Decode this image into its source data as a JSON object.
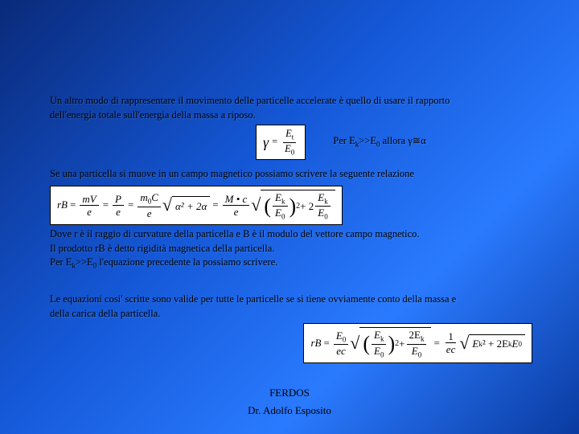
{
  "slide": {
    "para1a": "Un altro modo di rappresentare il movimento delle particelle accelerate è quello di usare il rapporto",
    "para1b": "dell'energia totale sull'energia della massa a riposo.",
    "aside1": "Per E",
    "aside1_sub1": "k",
    "aside1_mid": ">>E",
    "aside1_sub2": "0",
    "aside1_end": " allora γ≅α",
    "para2": "Se una particella si muove in un campo magnetico possiamo scrivere la seguente relazione",
    "para3a": "Dove r è il raggio di curvature della particella e B è il modulo del vettore campo magnetico.",
    "para3b": "Il prodotto rB è detto rigidità magnetica della particella.",
    "para3c_a": "Per E",
    "para3c_sub1": "k",
    "para3c_mid": ">>E",
    "para3c_sub2": "0",
    "para3c_end": " l'equazione precedente la possiamo scrivere.",
    "para4a": "Le equazioni cosi' scritte sono valide per tutte le particelle se si tiene ovviamente conto della massa e",
    "para4b": "della carica della particella."
  },
  "formulas": {
    "f1": {
      "lhs": "γ",
      "num": "E",
      "num_sub": "t",
      "den": "E",
      "den_sub": "0"
    },
    "f2": {
      "lhs": "rB",
      "t1_num": "mV",
      "t1_den": "e",
      "t2_num": "P",
      "t2_den": "e",
      "t3_num_a": "m",
      "t3_num_sub": "0",
      "t3_num_b": "C",
      "t3_den": "e",
      "sqrt1": "α² + 2α",
      "t4_num": "M • c",
      "t4_den": "e",
      "inner_num": "E",
      "inner_num_sub": "k",
      "inner_den": "E",
      "inner_den_sub": "0",
      "tail_a": " + 2",
      "tail_num": "E",
      "tail_sub1": "k",
      "tail_den": "E",
      "tail_sub2": "0"
    },
    "f3": {
      "lhs": "rB",
      "coef_num": "E",
      "coef_sub": "0",
      "coef_den": "ec",
      "inner_num": "E",
      "inner_sub1": "k",
      "inner_den": "E",
      "inner_sub2": "0",
      "mid": " + ",
      "t2_num_a": "2E",
      "t2_sub1": "k",
      "t2_den": "E",
      "t2_sub2": "0",
      "rhs_coef_num": "1",
      "rhs_coef_den": "ec",
      "rhs_rad_a": "E",
      "rhs_sub_k": "k",
      "rhs_rad_b": "² + 2E",
      "rhs_sub_k2": "k",
      "rhs_rad_c": "E",
      "rhs_sub_0": "0"
    }
  },
  "footer": {
    "title": "FERDOS",
    "author": "Dr. Adolfo Esposito"
  },
  "colors": {
    "formula_bg": "#ffffff",
    "text": "#000000"
  }
}
